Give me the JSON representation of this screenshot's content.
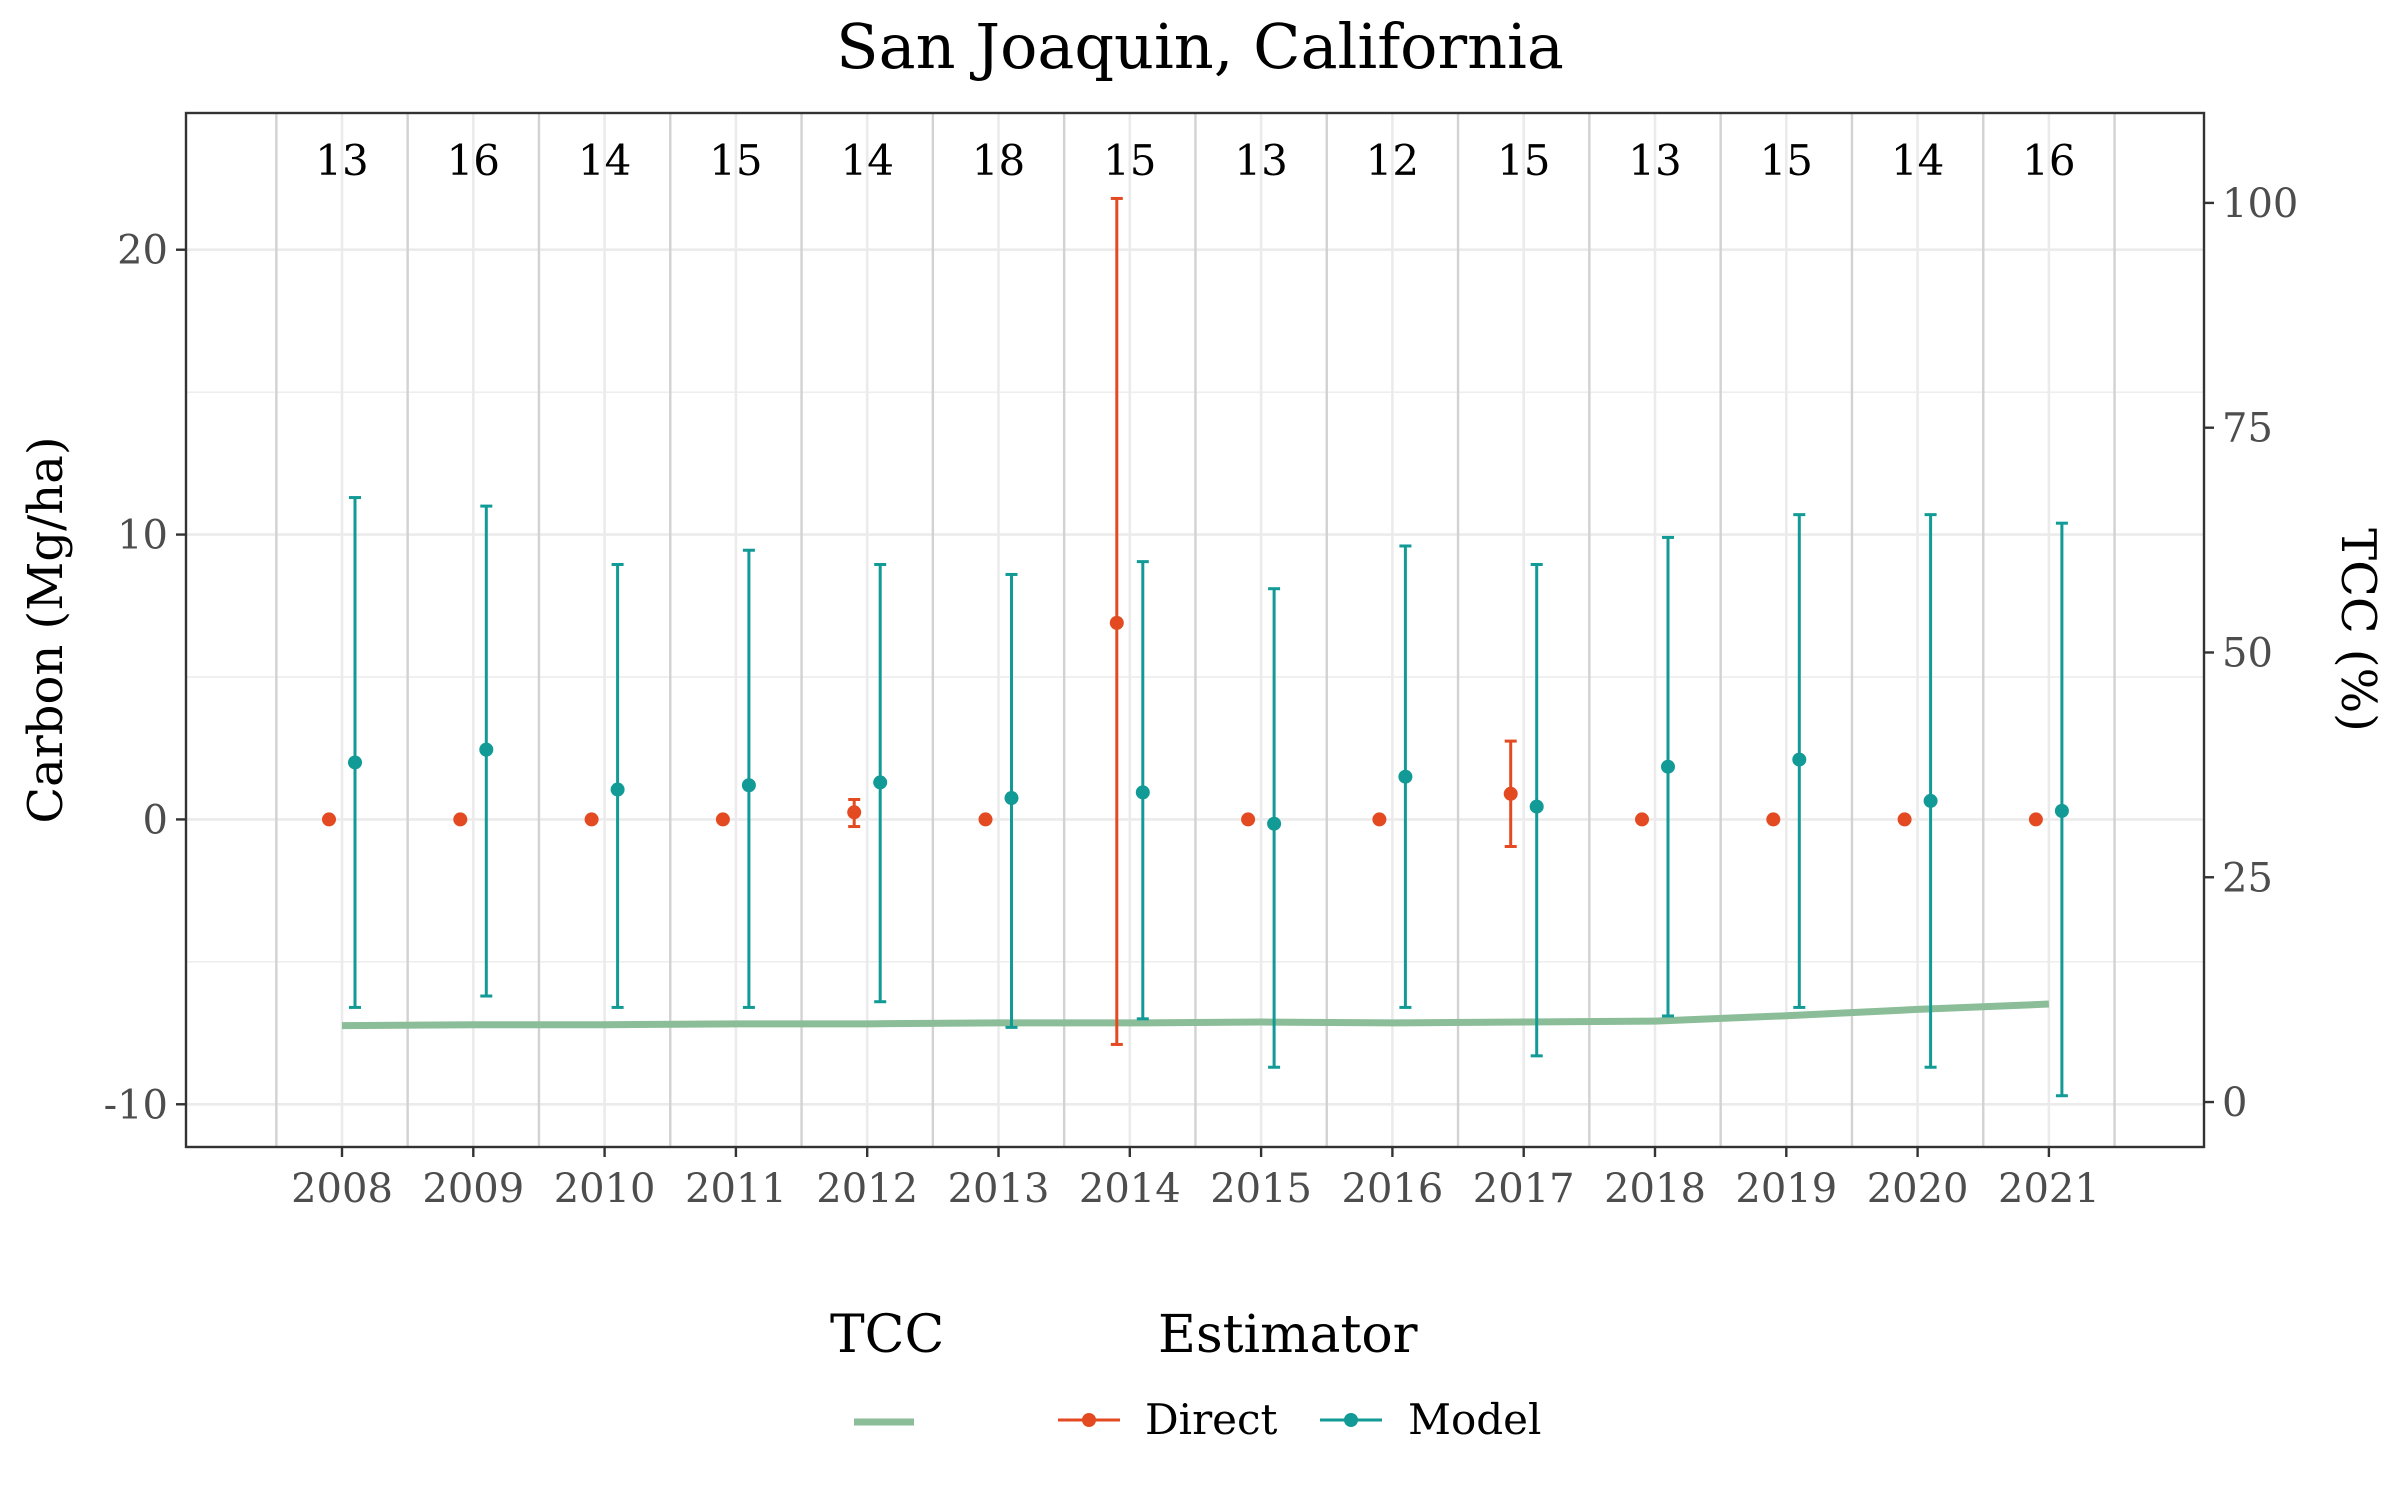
{
  "chart_data": {
    "type": "scatter",
    "title": "San Joaquin, California",
    "xlabel": "",
    "ylabel": "Carbon (Mg/ha)",
    "y2label": "TCC (%)",
    "categories": [
      "2008",
      "2009",
      "2010",
      "2011",
      "2012",
      "2013",
      "2014",
      "2015",
      "2016",
      "2017",
      "2018",
      "2019",
      "2020",
      "2021"
    ],
    "counts": [
      "13",
      "16",
      "14",
      "15",
      "14",
      "18",
      "15",
      "13",
      "12",
      "15",
      "13",
      "15",
      "14",
      "16"
    ],
    "ylim": [
      -11.5,
      24.8
    ],
    "yticks": [
      -10,
      0,
      10,
      20
    ],
    "ytick_labels": [
      "-10",
      "0",
      "10",
      "20"
    ],
    "y2lim": [
      -5,
      110
    ],
    "y2ticks": [
      0,
      25,
      50,
      75,
      100
    ],
    "y2tick_labels": [
      "0",
      "25",
      "50",
      "75",
      "100"
    ],
    "grid": true,
    "series": [
      {
        "name": "Direct",
        "color": "#e34a22",
        "values": [
          0,
          0,
          0,
          0,
          0.25,
          0,
          6.9,
          0,
          0,
          0.9,
          0,
          0,
          0,
          0
        ],
        "lower": [
          null,
          null,
          null,
          null,
          -0.25,
          null,
          -7.9,
          null,
          null,
          -0.95,
          null,
          null,
          null,
          null
        ],
        "upper": [
          null,
          null,
          null,
          null,
          0.7,
          null,
          21.8,
          null,
          null,
          2.75,
          null,
          null,
          null,
          null
        ]
      },
      {
        "name": "Model",
        "color": "#119a96",
        "values": [
          2.0,
          2.45,
          1.05,
          1.2,
          1.3,
          0.75,
          0.95,
          -0.15,
          1.5,
          0.45,
          1.85,
          2.1,
          0.65,
          0.3
        ],
        "lower": [
          -6.6,
          -6.2,
          -6.6,
          -6.6,
          -6.4,
          -7.3,
          -7.0,
          -8.7,
          -6.6,
          -8.3,
          -6.9,
          -6.6,
          -8.7,
          -9.7
        ],
        "upper": [
          11.3,
          11.0,
          8.95,
          9.45,
          8.95,
          8.6,
          9.05,
          8.1,
          9.6,
          8.95,
          9.9,
          10.7,
          10.7,
          10.4
        ]
      }
    ],
    "tcc": {
      "name": "TCC",
      "color": "#8bbd98",
      "values": [
        8.5,
        8.6,
        8.6,
        8.7,
        8.7,
        8.8,
        8.8,
        8.9,
        8.8,
        8.9,
        9.0,
        9.6,
        10.3,
        10.9
      ]
    },
    "legend": {
      "position": "bottom",
      "tcc_title": "TCC",
      "estimator_title": "Estimator",
      "direct_label": "Direct",
      "model_label": "Model"
    }
  }
}
